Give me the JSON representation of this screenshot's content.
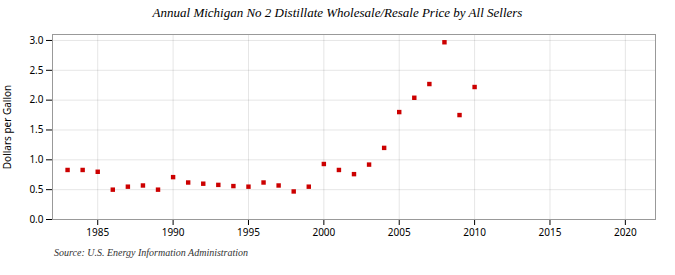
{
  "chart_data": {
    "type": "scatter",
    "title": "Annual Michigan No 2 Distillate Wholesale/Resale Price by All Sellers",
    "ylabel": "Dollars per Gallon",
    "source": "Source: U.S. Energy Information Administration",
    "x": [
      1983,
      1984,
      1985,
      1986,
      1987,
      1988,
      1989,
      1990,
      1991,
      1992,
      1993,
      1994,
      1995,
      1996,
      1997,
      1998,
      1999,
      2000,
      2001,
      2002,
      2003,
      2004,
      2005,
      2006,
      2007,
      2008,
      2009,
      2010
    ],
    "values": [
      0.83,
      0.83,
      0.8,
      0.5,
      0.55,
      0.57,
      0.5,
      0.71,
      0.62,
      0.6,
      0.58,
      0.56,
      0.55,
      0.62,
      0.57,
      0.47,
      0.55,
      0.93,
      0.83,
      0.76,
      0.92,
      1.2,
      1.8,
      2.04,
      2.27,
      2.97,
      1.75,
      2.22
    ],
    "color": "#cc0000",
    "marker": "square",
    "xlim": [
      1982,
      2022
    ],
    "xticks": [
      1985,
      1990,
      1995,
      2000,
      2005,
      2010,
      2015,
      2020
    ],
    "ylim": [
      0.0,
      3.1
    ],
    "yticks": [
      {
        "value": 0.0,
        "label": "0.0"
      },
      0.5,
      {
        "value": 1.0,
        "label": "1.0"
      },
      1.5,
      {
        "value": 2.0,
        "label": "2.0"
      },
      2.5,
      {
        "value": 3.0,
        "label": "3.0"
      }
    ],
    "grid": true
  }
}
